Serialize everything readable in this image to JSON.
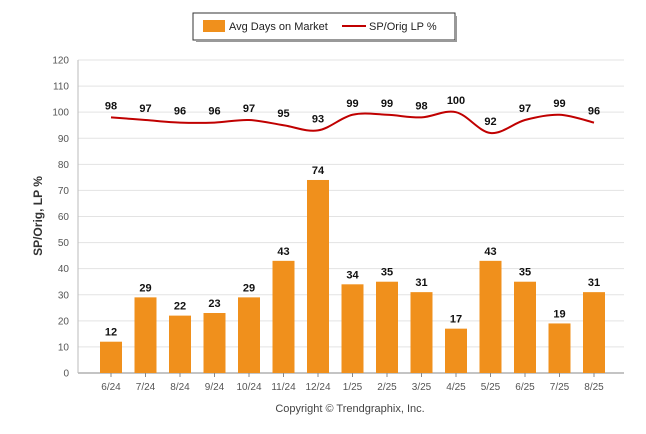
{
  "chart_data": {
    "type": "bar",
    "categories": [
      "6/24",
      "7/24",
      "8/24",
      "9/24",
      "10/24",
      "11/24",
      "12/24",
      "1/25",
      "2/25",
      "3/25",
      "4/25",
      "5/25",
      "6/25",
      "7/25",
      "8/25"
    ],
    "series": [
      {
        "name": "Avg Days on Market",
        "type": "bar",
        "color": "#f0901c",
        "values": [
          12,
          29,
          22,
          23,
          29,
          43,
          74,
          34,
          35,
          31,
          17,
          43,
          35,
          19,
          31
        ]
      },
      {
        "name": "SP/Orig LP %",
        "type": "line",
        "color": "#c00000",
        "values": [
          98,
          97,
          96,
          96,
          97,
          95,
          93,
          99,
          99,
          98,
          100,
          92,
          97,
          99,
          96
        ]
      }
    ],
    "xlabel": "",
    "ylabel": "SP/Orig, LP %",
    "ylim": [
      0,
      120
    ],
    "yticks": [
      0,
      10,
      20,
      30,
      40,
      50,
      60,
      70,
      80,
      90,
      100,
      110,
      120
    ],
    "grid": true,
    "legend_placement": "top-center"
  },
  "footer": {
    "copyright": "Copyright © Trendgraphix, Inc."
  }
}
